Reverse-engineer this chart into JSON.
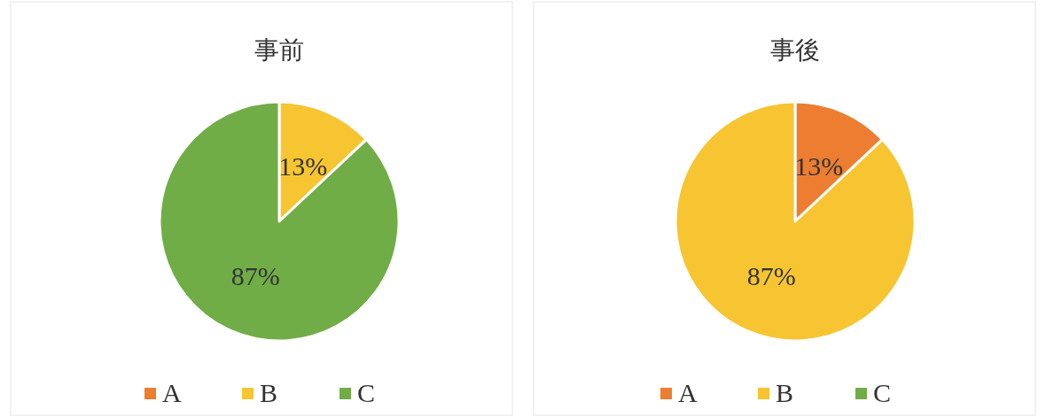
{
  "chart_data": [
    {
      "type": "pie",
      "title": "事前",
      "categories": [
        "A",
        "B",
        "C"
      ],
      "values": [
        0,
        13,
        87
      ],
      "colors": [
        "#ed7d31",
        "#f7c531",
        "#70ad47"
      ],
      "value_labels": [
        null,
        "13%",
        "87%"
      ],
      "legend": "bottom"
    },
    {
      "type": "pie",
      "title": "事後",
      "categories": [
        "A",
        "B",
        "C"
      ],
      "values": [
        13,
        87,
        0
      ],
      "colors": [
        "#ed7d31",
        "#f7c531",
        "#70ad47"
      ],
      "value_labels": [
        "13%",
        "87%",
        null
      ],
      "legend": "bottom"
    }
  ]
}
